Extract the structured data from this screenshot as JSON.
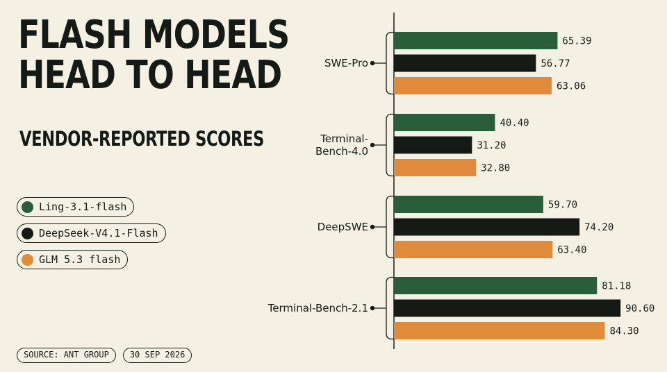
{
  "title_lines": [
    "FLASH MODELS",
    "HEAD TO HEAD"
  ],
  "subtitle": "VENDOR-REPORTED SCORES",
  "footer": {
    "source": "SOURCE: ANT GROUP",
    "date": "30 SEP 2026"
  },
  "colors": {
    "background": "#f4f1e4",
    "ling": "#2a5e3a",
    "deepseek": "#161a16",
    "glm": "#e08a3c",
    "ink": "#161a16"
  },
  "legend": [
    {
      "label": "Ling-3.1-flash",
      "color": "#2a5e3a"
    },
    {
      "label": "DeepSeek-V4.1-Flash",
      "color": "#161a16"
    },
    {
      "label": "GLM 5.3 flash",
      "color": "#e08a3c"
    }
  ],
  "chart_data": {
    "type": "bar",
    "orientation": "horizontal",
    "categories": [
      [
        "SWE-Pro"
      ],
      [
        "Terminal-",
        "Bench-4.0"
      ],
      [
        "DeepSWE"
      ],
      [
        "Terminal-Bench-2.1"
      ]
    ],
    "series": [
      {
        "name": "Ling-3.1-flash",
        "color": "#2a5e3a",
        "values": [
          65.39,
          40.4,
          59.7,
          81.18
        ],
        "labels": [
          "65.39",
          "40.40",
          "59.70",
          "81.18"
        ]
      },
      {
        "name": "DeepSeek-V4.1-Flash",
        "color": "#161a16",
        "values": [
          56.77,
          31.2,
          74.2,
          90.6
        ],
        "labels": [
          "56.77",
          "31.20",
          "74.20",
          "90.60"
        ]
      },
      {
        "name": "GLM 5.3 flash",
        "color": "#e08a3c",
        "values": [
          63.06,
          32.8,
          63.4,
          84.3
        ],
        "labels": [
          "63.06",
          "32.80",
          "63.40",
          "84.30"
        ]
      }
    ],
    "xlim": [
      0,
      100
    ],
    "grid": false,
    "legend_position": "left"
  }
}
